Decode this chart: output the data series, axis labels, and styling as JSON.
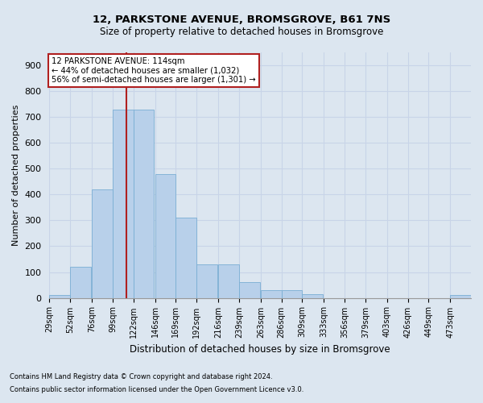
{
  "title": "12, PARKSTONE AVENUE, BROMSGROVE, B61 7NS",
  "subtitle": "Size of property relative to detached houses in Bromsgrove",
  "xlabel": "Distribution of detached houses by size in Bromsgrove",
  "ylabel": "Number of detached properties",
  "footnote1": "Contains HM Land Registry data © Crown copyright and database right 2024.",
  "footnote2": "Contains public sector information licensed under the Open Government Licence v3.0.",
  "annotation_line1": "12 PARKSTONE AVENUE: 114sqm",
  "annotation_line2": "← 44% of detached houses are smaller (1,032)",
  "annotation_line3": "56% of semi-detached houses are larger (1,301) →",
  "bin_edges": [
    29,
    52,
    76,
    99,
    122,
    146,
    169,
    192,
    216,
    239,
    263,
    286,
    309,
    333,
    356,
    379,
    403,
    426,
    449,
    473,
    496
  ],
  "bar_heights": [
    10,
    120,
    420,
    730,
    730,
    480,
    310,
    130,
    130,
    60,
    30,
    30,
    15,
    0,
    0,
    0,
    0,
    0,
    0,
    10
  ],
  "bar_color": "#b8d0ea",
  "bar_edge_color": "#7aaed4",
  "vline_color": "#b02020",
  "vline_x": 114,
  "ylim": [
    0,
    950
  ],
  "yticks": [
    0,
    100,
    200,
    300,
    400,
    500,
    600,
    700,
    800,
    900
  ],
  "grid_color": "#c8d4e8",
  "bg_color": "#dce6f0",
  "annotation_box_color": "#ffffff",
  "annotation_box_edge": "#b02020",
  "fig_width": 6.0,
  "fig_height": 5.0,
  "dpi": 100
}
